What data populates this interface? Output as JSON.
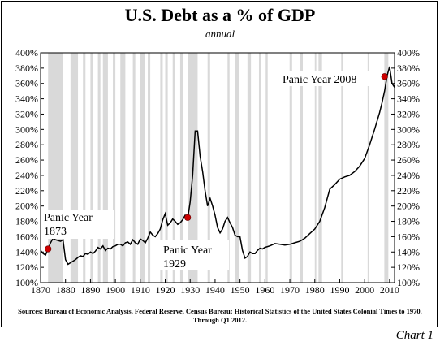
{
  "chart_data": {
    "type": "line",
    "title": "U.S. Debt as a % of GDP",
    "subtitle": "annual",
    "source": "Sources: Bureau of Economic Analysis, Federal Reserve, Census Bureau: Historical Statistics of the United States Colonial Times to 1970.  Through Q1 2012.",
    "footer": "Chart 1",
    "xlim": [
      1870,
      2012
    ],
    "ylim": [
      100,
      400
    ],
    "x_ticks": [
      1870,
      1880,
      1890,
      1900,
      1910,
      1920,
      1930,
      1940,
      1950,
      1960,
      1970,
      1980,
      1990,
      2000,
      2010
    ],
    "y_ticks": [
      100,
      120,
      140,
      160,
      180,
      200,
      220,
      240,
      260,
      280,
      300,
      320,
      340,
      360,
      380,
      400
    ],
    "y_tick_suffix": "%",
    "grid": false,
    "line_color": "#000000",
    "recession_color": "#d9d9d9",
    "marker_color": "#cc0000",
    "recessions": [
      [
        1873,
        1879
      ],
      [
        1882,
        1885
      ],
      [
        1887,
        1888
      ],
      [
        1890,
        1891
      ],
      [
        1893,
        1894
      ],
      [
        1895,
        1897
      ],
      [
        1899,
        1900
      ],
      [
        1902,
        1904
      ],
      [
        1907,
        1908
      ],
      [
        1910,
        1912
      ],
      [
        1913,
        1914
      ],
      [
        1918,
        1919
      ],
      [
        1920,
        1921
      ],
      [
        1923,
        1924
      ],
      [
        1926,
        1927
      ],
      [
        1929,
        1933
      ],
      [
        1937,
        1938
      ],
      [
        1945,
        1945.8
      ],
      [
        1948,
        1949.8
      ],
      [
        1953,
        1954.4
      ],
      [
        1957.6,
        1958.3
      ],
      [
        1960.3,
        1961.1
      ],
      [
        1969.9,
        1970.9
      ],
      [
        1973.9,
        1975.2
      ],
      [
        1980,
        1980.6
      ],
      [
        1981.5,
        1982.9
      ],
      [
        1990.6,
        1991.2
      ],
      [
        2001.2,
        2001.9
      ],
      [
        2007.9,
        2009.5
      ]
    ],
    "series": [
      {
        "x": [
          1870,
          1871,
          1872,
          1873,
          1874,
          1875,
          1876,
          1877,
          1878,
          1879,
          1880,
          1881,
          1882,
          1883,
          1884,
          1885,
          1886,
          1887,
          1888,
          1889,
          1890,
          1891,
          1892,
          1893,
          1894,
          1895,
          1896,
          1897,
          1898,
          1899,
          1900,
          1901,
          1902,
          1903,
          1904,
          1905,
          1906,
          1907,
          1908,
          1909,
          1910,
          1911,
          1912,
          1913,
          1914,
          1915,
          1916,
          1917,
          1918,
          1919,
          1920,
          1921,
          1922,
          1923,
          1924,
          1925,
          1926,
          1927,
          1928,
          1929,
          1930,
          1931,
          1932,
          1933,
          1934,
          1935,
          1936,
          1937,
          1938,
          1939,
          1940,
          1941,
          1942,
          1943,
          1944,
          1945,
          1946,
          1947,
          1948,
          1949,
          1950,
          1951,
          1952,
          1953,
          1954,
          1955,
          1956,
          1957,
          1958,
          1959,
          1960,
          1962,
          1964,
          1966,
          1968,
          1970,
          1972,
          1974,
          1976,
          1978,
          1980,
          1982,
          1984,
          1986,
          1988,
          1990,
          1992,
          1994,
          1996,
          1998,
          2000,
          2002,
          2004,
          2006,
          2007,
          2008,
          2009,
          2010,
          2011,
          2012
        ],
        "values": [
          142,
          138,
          136,
          144,
          152,
          158,
          156,
          155,
          154,
          156,
          130,
          124,
          126,
          128,
          130,
          133,
          135,
          134,
          138,
          137,
          140,
          138,
          141,
          146,
          144,
          148,
          142,
          145,
          144,
          147,
          148,
          150,
          150,
          148,
          152,
          153,
          150,
          156,
          152,
          150,
          157,
          155,
          152,
          158,
          166,
          162,
          160,
          164,
          170,
          182,
          190,
          175,
          178,
          183,
          180,
          176,
          178,
          182,
          188,
          184,
          205,
          240,
          298,
          298,
          265,
          245,
          220,
          200,
          210,
          200,
          188,
          172,
          165,
          170,
          180,
          185,
          178,
          172,
          162,
          160,
          160,
          142,
          132,
          134,
          140,
          138,
          138,
          142,
          145,
          144,
          146,
          148,
          151,
          150,
          149,
          150,
          152,
          154,
          158,
          164,
          170,
          180,
          198,
          222,
          228,
          235,
          238,
          240,
          245,
          252,
          262,
          280,
          300,
          322,
          335,
          350,
          370,
          382,
          360,
          355
        ],
        "color": "#000000"
      }
    ],
    "annotations": [
      {
        "text_line1": "Panic Year",
        "text_line2": "1873",
        "year": 1873,
        "value": 144
      },
      {
        "text_line1": "Panic Year",
        "text_line2": "1929",
        "year": 1929,
        "value": 185
      },
      {
        "text_line1": "Panic Year 2008",
        "text_line2": "",
        "year": 2008,
        "value": 369
      }
    ]
  }
}
